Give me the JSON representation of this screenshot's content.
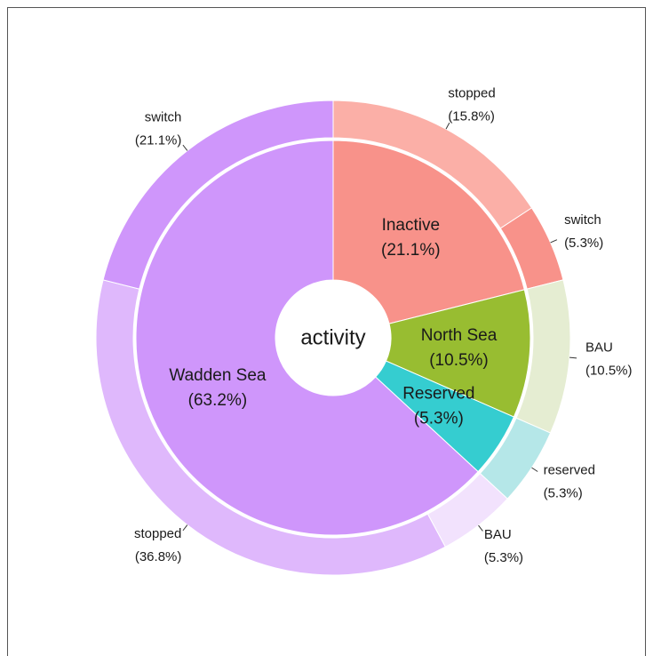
{
  "chart_data": {
    "type": "sunburst",
    "center_label": "activity",
    "groups": [
      {
        "name": "Inactive",
        "value": 21.1,
        "value_label": "(21.1%)",
        "color": "#f8928a",
        "children": [
          {
            "name": "stopped",
            "value": 15.8,
            "value_label": "(15.8%)",
            "color": "#fbafa7"
          },
          {
            "name": "switch",
            "value": 5.3,
            "value_label": "(5.3%)",
            "color": "#f8928a"
          }
        ]
      },
      {
        "name": "North Sea",
        "value": 10.5,
        "value_label": "(10.5%)",
        "color": "#98bd31",
        "children": [
          {
            "name": "BAU",
            "value": 10.5,
            "value_label": "(10.5%)",
            "color": "#e5edd2"
          }
        ]
      },
      {
        "name": "Reserved",
        "value": 5.3,
        "value_label": "(5.3%)",
        "color": "#35cdd0",
        "children": [
          {
            "name": "reserved",
            "value": 5.3,
            "value_label": "(5.3%)",
            "color": "#b5e7e8"
          }
        ]
      },
      {
        "name": "Wadden Sea",
        "value": 63.2,
        "value_label": "(63.2%)",
        "color": "#cf96fb",
        "children": [
          {
            "name": "BAU",
            "value": 5.3,
            "value_label": "(5.3%)",
            "color": "#f2e2fd"
          },
          {
            "name": "stopped",
            "value": 36.8,
            "value_label": "(36.8%)",
            "color": "#dfb8fc"
          },
          {
            "name": "switch",
            "value": 21.1,
            "value_label": "(21.1%)",
            "color": "#cf96fb"
          }
        ]
      }
    ]
  }
}
